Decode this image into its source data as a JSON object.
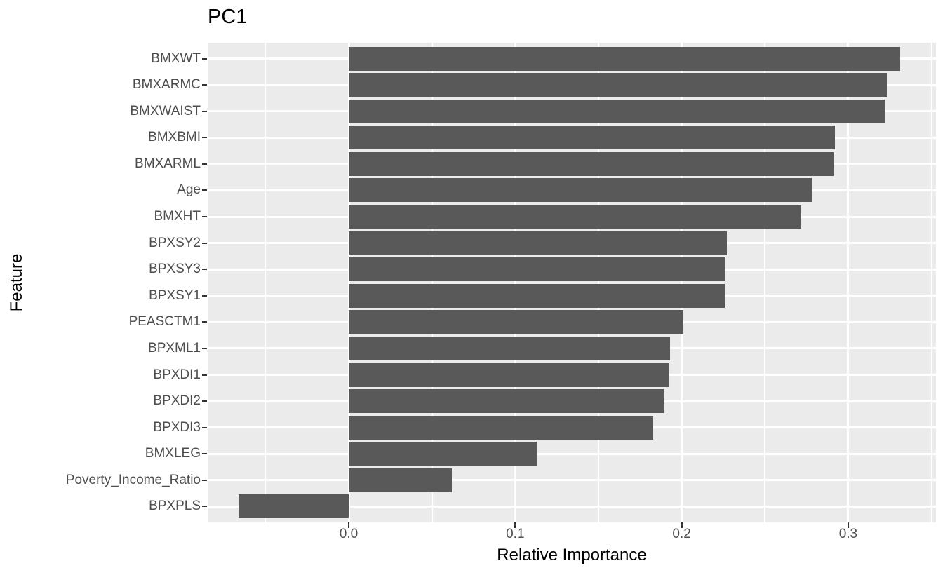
{
  "title": "PC1",
  "chart_data": {
    "type": "bar",
    "orientation": "horizontal",
    "title": "PC1",
    "xlabel": "Relative Importance",
    "ylabel": "Feature",
    "categories": [
      "BMXWT",
      "BMXARMC",
      "BMXWAIST",
      "BMXBMI",
      "BMXARML",
      "Age",
      "BMXHT",
      "BPXSY2",
      "BPXSY3",
      "BPXSY1",
      "PEASCTM1",
      "BPXML1",
      "BPXDI1",
      "BPXDI2",
      "BPXDI3",
      "BMXLEG",
      "Poverty_Income_Ratio",
      "BPXPLS"
    ],
    "values": [
      0.331,
      0.323,
      0.322,
      0.292,
      0.291,
      0.278,
      0.272,
      0.227,
      0.226,
      0.226,
      0.201,
      0.193,
      0.192,
      0.189,
      0.183,
      0.113,
      0.062,
      -0.066
    ],
    "xlim": [
      -0.0847,
      0.3527
    ],
    "x_major_ticks": [
      0.0,
      0.1,
      0.2,
      0.3
    ],
    "x_tick_labels": [
      "0.0",
      "0.1",
      "0.2",
      "0.3"
    ],
    "x_minor_ticks": [
      -0.05,
      0.05,
      0.15,
      0.25,
      0.35
    ],
    "grid": true,
    "legend_position": "none",
    "colors": {
      "bar": "#595959",
      "panel_background": "#EBEBEB",
      "gridline": "#FFFFFF",
      "tick_text": "#4D4D4D",
      "axis_title_text": "#000000",
      "title_text": "#000000",
      "tick_mark": "#333333"
    }
  }
}
